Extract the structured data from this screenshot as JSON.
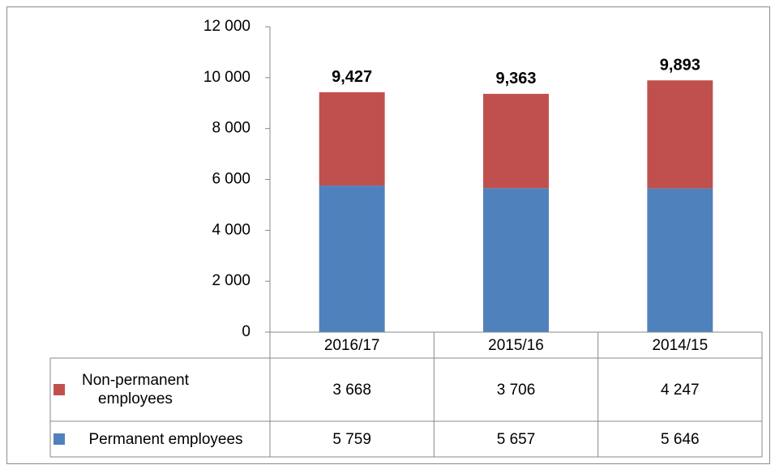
{
  "chart_data": {
    "type": "stacked_bar",
    "categories": [
      "2016/17",
      "2015/16",
      "2014/15"
    ],
    "series": [
      {
        "name": "Permanent employees",
        "color": "#4f81bd",
        "values": [
          5759,
          5657,
          5646
        ],
        "value_labels": [
          "5 759",
          "5 657",
          "5 646"
        ]
      },
      {
        "name": "Non-permanent employees",
        "color": "#c0504d",
        "values": [
          3668,
          3706,
          4247
        ],
        "value_labels": [
          "3 668",
          "3 706",
          "4 247"
        ]
      }
    ],
    "totals": {
      "values": [
        9427,
        9363,
        9893
      ],
      "value_labels": [
        "9,427",
        "9,363",
        "9,893"
      ]
    },
    "ylim": [
      0,
      12000
    ],
    "yticks": [
      0,
      {
        "value": 2000,
        "label": "2 000"
      },
      {
        "value": 4000,
        "label": "4 000"
      },
      {
        "value": 6000,
        "label": "6 000"
      },
      {
        "value": 8000,
        "label": "8 000"
      },
      {
        "value": 10000,
        "label": "10 000"
      },
      {
        "value": 12000,
        "label": "12 000"
      }
    ],
    "data_table": true
  }
}
